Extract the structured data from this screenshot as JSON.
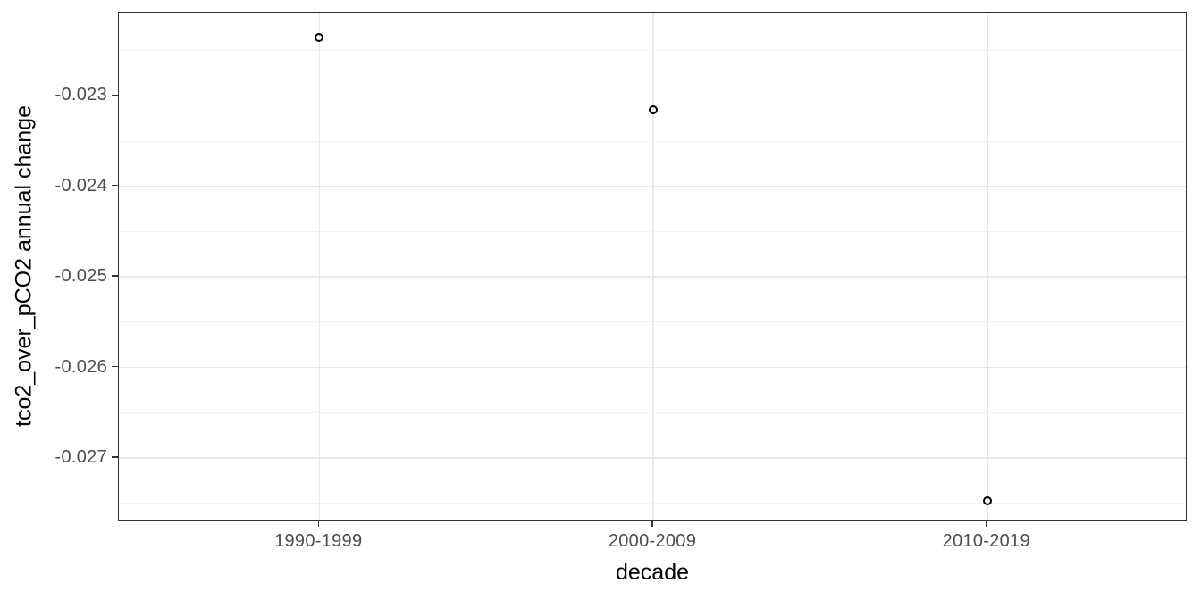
{
  "chart_data": {
    "type": "scatter",
    "xlabel": "decade",
    "ylabel": "tco2_over_pCO2 annual change",
    "categories": [
      "1990-1999",
      "2000-2009",
      "2010-2019"
    ],
    "values": [
      -0.02236,
      -0.02315,
      -0.02747
    ],
    "y_ticks": [
      -0.023,
      -0.024,
      -0.025,
      -0.026,
      -0.027
    ],
    "y_tick_labels": [
      "-0.023",
      "-0.024",
      "-0.025",
      "-0.026",
      "-0.027"
    ],
    "y_minor_gridlines": [
      -0.0225,
      -0.0235,
      -0.0245,
      -0.0255,
      -0.0265,
      -0.0275
    ],
    "ylim": [
      -0.0277,
      -0.02209
    ],
    "grid": true,
    "legend_position": "none",
    "point_style": "open-circle",
    "colors": {
      "background": "#ffffff",
      "panel_background": "#ffffff",
      "panel_border": "#333333",
      "grid_major": "#e8e8e8",
      "grid_minor": "#f3f3f3",
      "axis_tick": "#333333",
      "tick_label": "#4d4d4d",
      "axis_title": "#000000",
      "point_stroke": "#000000"
    }
  }
}
